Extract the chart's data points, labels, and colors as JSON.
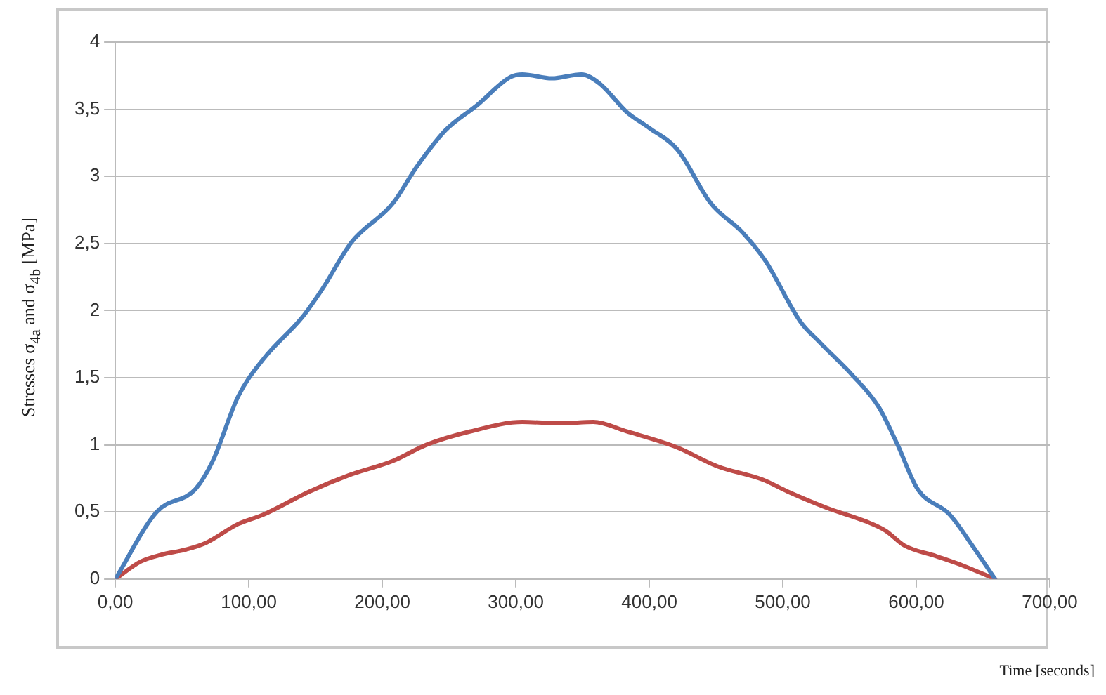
{
  "chart_data": {
    "type": "line",
    "ylabel": "Stresses σ$_{4a}$ and σ$_{4b}$ [MPa]",
    "xlabel": "Time [seconds]",
    "xlim": [
      0,
      700
    ],
    "xticks": [
      {
        "value": 0,
        "label": "0,00"
      },
      {
        "value": 100,
        "label": "100,00"
      },
      {
        "value": 200,
        "label": "200,00"
      },
      {
        "value": 300,
        "label": "300,00"
      },
      {
        "value": 400,
        "label": "400,00"
      },
      {
        "value": 500,
        "label": "500,00"
      },
      {
        "value": 600,
        "label": "600,00"
      },
      {
        "value": 700,
        "label": "700,00"
      }
    ],
    "ylim": [
      0,
      4
    ],
    "yticks": [
      0,
      {
        "value": 0.5,
        "label": "0,5"
      },
      1,
      {
        "value": 1.5,
        "label": "1,5"
      },
      2,
      {
        "value": 2.5,
        "label": "2,5"
      },
      3,
      {
        "value": 3.5,
        "label": "3,5"
      },
      4
    ],
    "grid": "y",
    "legend": false,
    "marker": "none",
    "line_style": "solid",
    "series": [
      {
        "color": "#4a7ebb",
        "x": [
          0,
          31,
          60,
          73,
          92,
          111,
          140,
          155,
          177,
          208,
          225,
          247,
          271,
          296,
          305,
          327,
          349,
          363,
          383,
          400,
          421,
          446,
          470,
          487,
          513,
          528,
          552,
          572,
          586,
          601,
          625,
          644,
          659
        ],
        "values": [
          0,
          0.5,
          0.67,
          0.88,
          1.36,
          1.64,
          1.95,
          2.16,
          2.51,
          2.8,
          3.06,
          3.34,
          3.53,
          3.74,
          3.76,
          3.73,
          3.76,
          3.69,
          3.48,
          3.36,
          3.2,
          2.8,
          2.58,
          2.37,
          1.92,
          1.76,
          1.52,
          1.28,
          1.0,
          0.67,
          0.48,
          0.22,
          0
        ]
      },
      {
        "color": "#be4b48",
        "x": [
          0,
          19,
          34,
          53,
          68,
          92,
          111,
          145,
          174,
          208,
          233,
          266,
          305,
          334,
          358,
          383,
          421,
          451,
          485,
          504,
          533,
          562,
          577,
          591,
          615,
          635,
          659
        ],
        "values": [
          0,
          0.13,
          0.18,
          0.22,
          0.27,
          0.41,
          0.48,
          0.65,
          0.77,
          0.88,
          1.0,
          1.1,
          1.17,
          1.16,
          1.17,
          1.1,
          0.98,
          0.84,
          0.74,
          0.65,
          0.53,
          0.43,
          0.36,
          0.25,
          0.17,
          0.1,
          0
        ]
      }
    ]
  }
}
